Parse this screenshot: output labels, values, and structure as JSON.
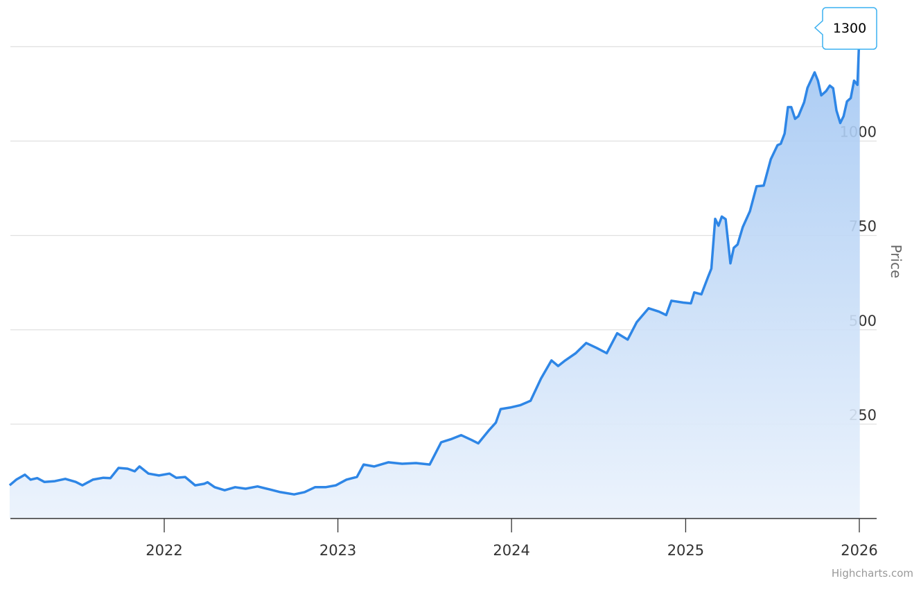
{
  "chart_data": {
    "type": "area",
    "title": "",
    "xlabel": "",
    "ylabel": "Price",
    "x_ticks": [
      "2022",
      "2023",
      "2024",
      "2025",
      "2026"
    ],
    "y_ticks": [
      250,
      500,
      750,
      1000,
      1250
    ],
    "y_tick_labels": [
      "250",
      "500",
      "750",
      "1000"
    ],
    "ylim": [
      0,
      1250
    ],
    "grid": true,
    "legend": "none",
    "colors": {
      "line": "#2e86e6",
      "fill_top": "#9ec4f2",
      "fill_bottom": "#eaf2fc",
      "tooltip_border": "#3ab0f0"
    },
    "tooltip": {
      "value": "1300"
    },
    "credit": "Highcharts.com",
    "series": [
      {
        "x": [
          "2021-02-10",
          "2021-02-24",
          "2021-03-14",
          "2021-03-26",
          "2021-04-09",
          "2021-04-24",
          "2021-05-16",
          "2021-06-07",
          "2021-06-29",
          "2021-07-13",
          "2021-08-04",
          "2021-08-26",
          "2021-09-10",
          "2021-09-27",
          "2021-10-16",
          "2021-10-31",
          "2021-11-10",
          "2021-11-29",
          "2021-12-21",
          "2022-01-12",
          "2022-01-26",
          "2022-02-14",
          "2022-03-07",
          "2022-03-26",
          "2022-04-02",
          "2022-04-17",
          "2022-05-08",
          "2022-05-30",
          "2022-06-21",
          "2022-07-16",
          "2022-08-11",
          "2022-09-02",
          "2022-10-01",
          "2022-10-23",
          "2022-11-14",
          "2022-12-06",
          "2022-12-28",
          "2023-01-19",
          "2023-02-10",
          "2023-02-24",
          "2023-03-18",
          "2023-04-17",
          "2023-05-16",
          "2023-06-14",
          "2023-07-13",
          "2023-08-06",
          "2023-08-26",
          "2023-09-17",
          "2023-10-09",
          "2023-10-23",
          "2023-11-14",
          "2023-11-29",
          "2023-12-09",
          "2023-12-29",
          "2024-01-19",
          "2024-02-10",
          "2024-03-03",
          "2024-03-25",
          "2024-04-08",
          "2024-04-23",
          "2024-05-15",
          "2024-06-06",
          "2024-06-28",
          "2024-07-19",
          "2024-08-10",
          "2024-09-01",
          "2024-09-20",
          "2024-10-15",
          "2024-11-06",
          "2024-11-21",
          "2024-12-02",
          "2024-12-27",
          "2025-01-12",
          "2025-01-19",
          "2025-02-03",
          "2025-02-17",
          "2025-02-24",
          "2025-03-04",
          "2025-03-11",
          "2025-03-18",
          "2025-03-26",
          "2025-04-05",
          "2025-04-12",
          "2025-04-20",
          "2025-05-01",
          "2025-05-16",
          "2025-05-30",
          "2025-06-14",
          "2025-06-29",
          "2025-07-13",
          "2025-07-20",
          "2025-07-28",
          "2025-08-04",
          "2025-08-11",
          "2025-08-19",
          "2025-08-26",
          "2025-09-07",
          "2025-09-14",
          "2025-09-29",
          "2025-10-06",
          "2025-10-13",
          "2025-10-23",
          "2025-10-31",
          "2025-11-07",
          "2025-11-14",
          "2025-11-22",
          "2025-11-29",
          "2025-12-06",
          "2025-12-14",
          "2025-12-21",
          "2025-12-28",
          "2025-12-31",
          "2026-01-02"
        ],
        "values": [
          88,
          103,
          116,
          103,
          107,
          97,
          99,
          105,
          97,
          88,
          103,
          108,
          107,
          134,
          132,
          125,
          138,
          119,
          114,
          119,
          108,
          110,
          88,
          92,
          96,
          83,
          75,
          83,
          79,
          85,
          77,
          70,
          64,
          70,
          83,
          83,
          88,
          103,
          110,
          143,
          138,
          149,
          145,
          147,
          143,
          202,
          210,
          221,
          208,
          199,
          233,
          254,
          290,
          294,
          300,
          312,
          371,
          419,
          404,
          419,
          438,
          465,
          452,
          438,
          491,
          474,
          520,
          557,
          548,
          539,
          577,
          572,
          570,
          599,
          594,
          640,
          662,
          794,
          776,
          800,
          793,
          676,
          717,
          726,
          772,
          814,
          880,
          882,
          952,
          989,
          993,
          1020,
          1090,
          1090,
          1059,
          1066,
          1103,
          1141,
          1182,
          1160,
          1121,
          1132,
          1147,
          1140,
          1081,
          1048,
          1066,
          1105,
          1114,
          1160,
          1149,
          1246,
          1300
        ]
      }
    ]
  }
}
